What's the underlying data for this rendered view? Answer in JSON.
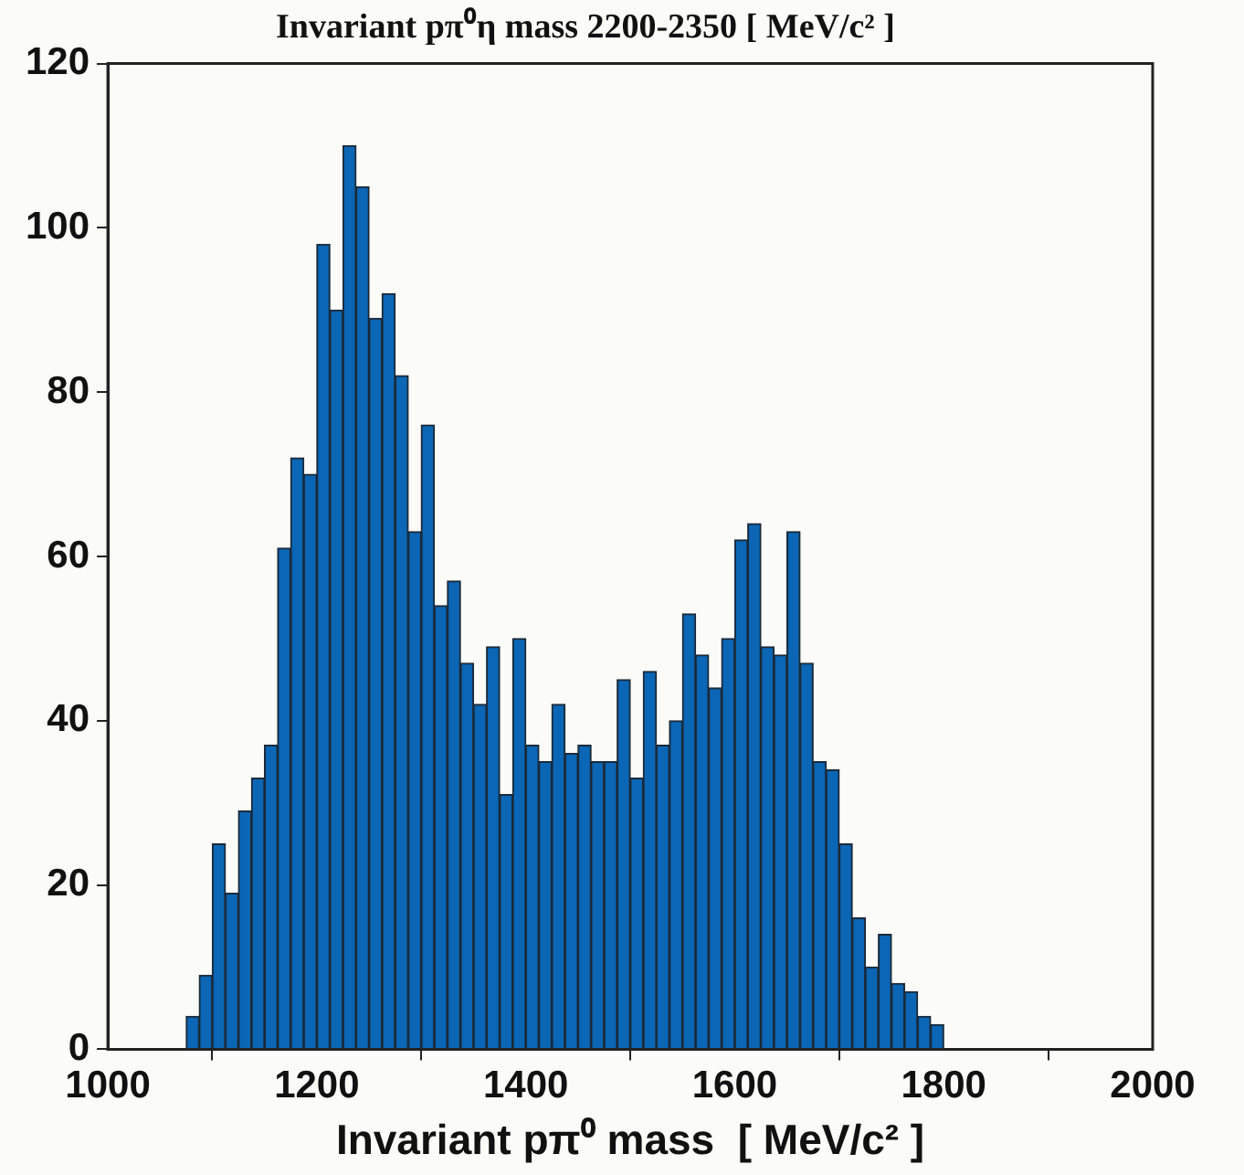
{
  "chart_data": {
    "type": "histogram",
    "title": "Invariant pπ⁰η mass 2200-2350 [ MeV/c² ]",
    "xlabel": "Invariant pπ⁰ mass  [ MeV/c² ]",
    "bins": [
      1000,
      1012.5,
      1025,
      1037.5,
      1050,
      1062.5,
      1075,
      1087.5,
      1100,
      1112.5,
      1125,
      1137.5,
      1150,
      1162.5,
      1175,
      1187.5,
      1200,
      1212.5,
      1225,
      1237.5,
      1250,
      1262.5,
      1275,
      1287.5,
      1300,
      1312.5,
      1325,
      1337.5,
      1350,
      1362.5,
      1375,
      1387.5,
      1400,
      1412.5,
      1425,
      1437.5,
      1450,
      1462.5,
      1475,
      1487.5,
      1500,
      1512.5,
      1525,
      1537.5,
      1550,
      1562.5,
      1575,
      1587.5,
      1600,
      1612.5,
      1625,
      1637.5,
      1650,
      1662.5,
      1675,
      1687.5,
      1700,
      1712.5,
      1725,
      1737.5,
      1750,
      1762.5,
      1775,
      1787.5,
      1800,
      1812.5,
      1825,
      1837.5,
      1850,
      1862.5,
      1875,
      1887.5,
      1900,
      1912.5,
      1925,
      1937.5,
      1950,
      1962.5,
      1975,
      1987.5,
      2000
    ],
    "values": [
      0,
      0,
      0,
      0,
      0,
      0,
      4,
      9,
      25,
      19,
      29,
      33,
      37,
      61,
      72,
      70,
      98,
      90,
      110,
      105,
      89,
      92,
      82,
      63,
      76,
      54,
      57,
      47,
      42,
      49,
      31,
      50,
      37,
      35,
      42,
      36,
      37,
      35,
      35,
      45,
      33,
      46,
      37,
      40,
      53,
      48,
      44,
      50,
      62,
      64,
      49,
      48,
      63,
      47,
      35,
      34,
      25,
      16,
      10,
      14,
      8,
      7,
      4,
      3,
      0,
      0,
      0,
      0,
      0,
      0,
      0,
      0,
      0,
      0,
      0,
      0,
      0,
      0,
      0,
      0
    ],
    "color": "#0b66b5",
    "xlim": [
      1000,
      2000
    ],
    "xticks": [
      1000,
      1200,
      1400,
      1600,
      1800,
      2000
    ],
    "ylim": [
      0,
      120
    ],
    "yticks": [
      0,
      20,
      40,
      60,
      80,
      100,
      120
    ],
    "grid": false,
    "legend": false
  }
}
